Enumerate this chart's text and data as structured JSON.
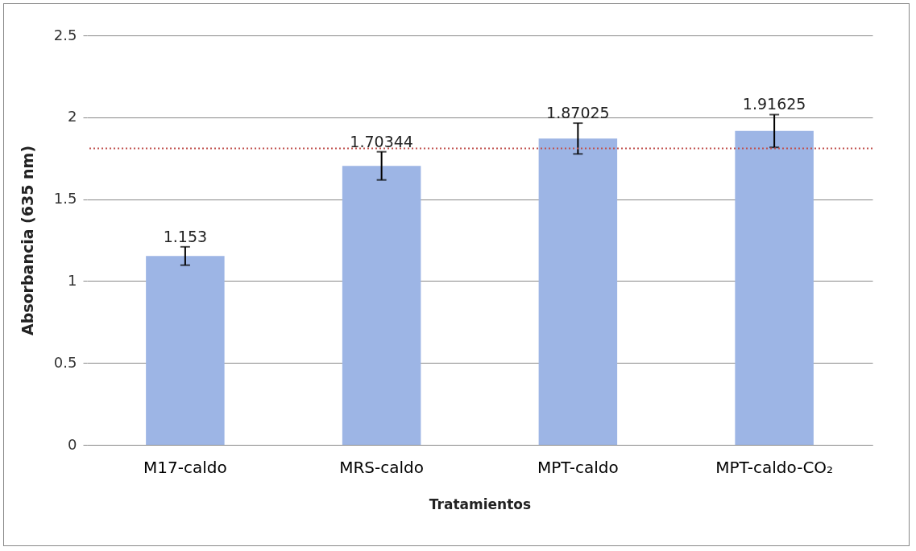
{
  "chart_data": {
    "type": "bar",
    "xlabel": "Tratamientos",
    "ylabel": "Absorbancia (635 nm)",
    "categories": [
      "M17-caldo",
      "MRS-caldo",
      "MPT-caldo",
      "MPT-caldo-CO₂"
    ],
    "values": [
      1.153,
      1.70344,
      1.87025,
      1.91625
    ],
    "errors": [
      0.056,
      0.086,
      0.094,
      0.1
    ],
    "color": "#9db5e5",
    "ylim": [
      0,
      2.5
    ],
    "yticks": [
      0,
      0.5,
      1,
      1.5,
      2,
      2.5
    ],
    "grid": "y",
    "data_labels": true,
    "ref_lines": [
      {
        "axis": "y",
        "value": 1.81,
        "color": "#c0504d",
        "line_style": "dotted"
      }
    ]
  }
}
